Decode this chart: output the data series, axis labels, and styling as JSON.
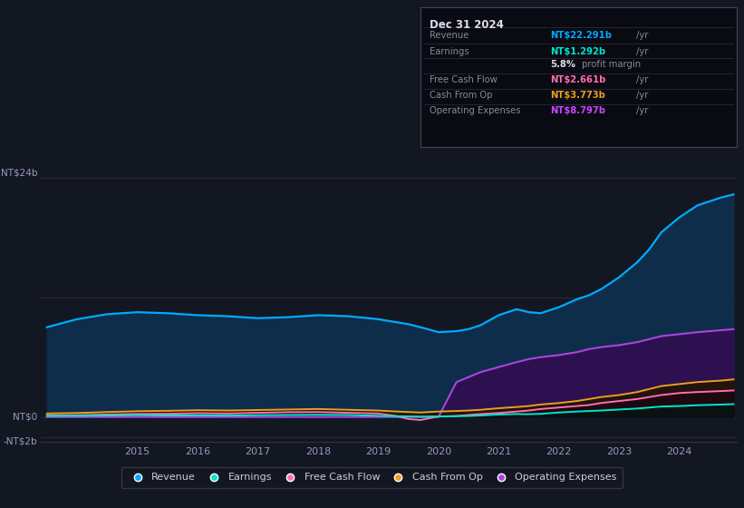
{
  "background_color": "#131722",
  "chart_bg_color": "#131722",
  "x_years": [
    2013.5,
    2014.0,
    2014.5,
    2015.0,
    2015.5,
    2016.0,
    2016.5,
    2017.0,
    2017.5,
    2018.0,
    2018.5,
    2019.0,
    2019.3,
    2019.5,
    2019.7,
    2020.0,
    2020.3,
    2020.5,
    2020.7,
    2021.0,
    2021.3,
    2021.5,
    2021.7,
    2022.0,
    2022.3,
    2022.5,
    2022.7,
    2023.0,
    2023.3,
    2023.5,
    2023.7,
    2024.0,
    2024.3,
    2024.7,
    2024.9
  ],
  "revenue": [
    9.0,
    9.8,
    10.3,
    10.5,
    10.4,
    10.2,
    10.1,
    9.9,
    10.0,
    10.2,
    10.1,
    9.8,
    9.5,
    9.3,
    9.0,
    8.5,
    8.6,
    8.8,
    9.2,
    10.2,
    10.8,
    10.5,
    10.4,
    11.0,
    11.8,
    12.2,
    12.8,
    14.0,
    15.5,
    16.8,
    18.5,
    20.0,
    21.2,
    22.0,
    22.3
  ],
  "earnings": [
    0.1,
    0.12,
    0.15,
    0.18,
    0.15,
    0.16,
    0.14,
    0.18,
    0.2,
    0.22,
    0.2,
    0.12,
    0.08,
    0.06,
    0.04,
    0.05,
    0.08,
    0.1,
    0.15,
    0.25,
    0.3,
    0.28,
    0.32,
    0.45,
    0.55,
    0.6,
    0.65,
    0.75,
    0.85,
    0.95,
    1.05,
    1.1,
    1.18,
    1.25,
    1.29
  ],
  "free_cash_flow": [
    0.15,
    0.18,
    0.25,
    0.3,
    0.32,
    0.38,
    0.35,
    0.42,
    0.48,
    0.5,
    0.42,
    0.35,
    0.1,
    -0.2,
    -0.3,
    0.05,
    0.1,
    0.2,
    0.3,
    0.4,
    0.55,
    0.65,
    0.8,
    0.95,
    1.1,
    1.2,
    1.4,
    1.6,
    1.8,
    2.0,
    2.2,
    2.4,
    2.5,
    2.6,
    2.66
  ],
  "cash_from_op": [
    0.35,
    0.4,
    0.5,
    0.58,
    0.62,
    0.68,
    0.65,
    0.7,
    0.75,
    0.8,
    0.72,
    0.65,
    0.55,
    0.5,
    0.45,
    0.55,
    0.6,
    0.65,
    0.72,
    0.88,
    1.0,
    1.1,
    1.25,
    1.4,
    1.6,
    1.8,
    2.0,
    2.2,
    2.5,
    2.8,
    3.1,
    3.3,
    3.5,
    3.65,
    3.77
  ],
  "operating_expenses": [
    0.0,
    0.0,
    0.0,
    0.0,
    0.0,
    0.0,
    0.0,
    0.0,
    0.0,
    0.0,
    0.0,
    0.0,
    0.0,
    0.0,
    0.0,
    0.0,
    3.5,
    4.0,
    4.5,
    5.0,
    5.5,
    5.8,
    6.0,
    6.2,
    6.5,
    6.8,
    7.0,
    7.2,
    7.5,
    7.8,
    8.1,
    8.3,
    8.5,
    8.7,
    8.8
  ],
  "revenue_color": "#00aaff",
  "earnings_color": "#00e5cc",
  "fcf_color": "#ff6eb4",
  "cashop_color": "#e8a020",
  "opex_color": "#aa44dd",
  "revenue_fill": "#0d2d4a",
  "opex_fill": "#2d1050",
  "info_box": {
    "date": "Dec 31 2024",
    "revenue_label": "Revenue",
    "revenue_val": "NT$22.291b",
    "revenue_color": "#00aaff",
    "earnings_label": "Earnings",
    "earnings_val": "NT$1.292b",
    "earnings_color": "#00e5cc",
    "margin_val": "5.8%",
    "margin_text": " profit margin",
    "fcf_label": "Free Cash Flow",
    "fcf_val": "NT$2.661b",
    "fcf_color": "#ff6eb4",
    "cashop_label": "Cash From Op",
    "cashop_val": "NT$3.773b",
    "cashop_color": "#e8a020",
    "opex_label": "Operating Expenses",
    "opex_val": "NT$8.797b",
    "opex_color": "#cc44ff"
  },
  "legend_items": [
    {
      "label": "Revenue",
      "color": "#00aaff"
    },
    {
      "label": "Earnings",
      "color": "#00e5cc"
    },
    {
      "label": "Free Cash Flow",
      "color": "#ff6eb4"
    },
    {
      "label": "Cash From Op",
      "color": "#e8a020"
    },
    {
      "label": "Operating Expenses",
      "color": "#aa44dd"
    }
  ]
}
